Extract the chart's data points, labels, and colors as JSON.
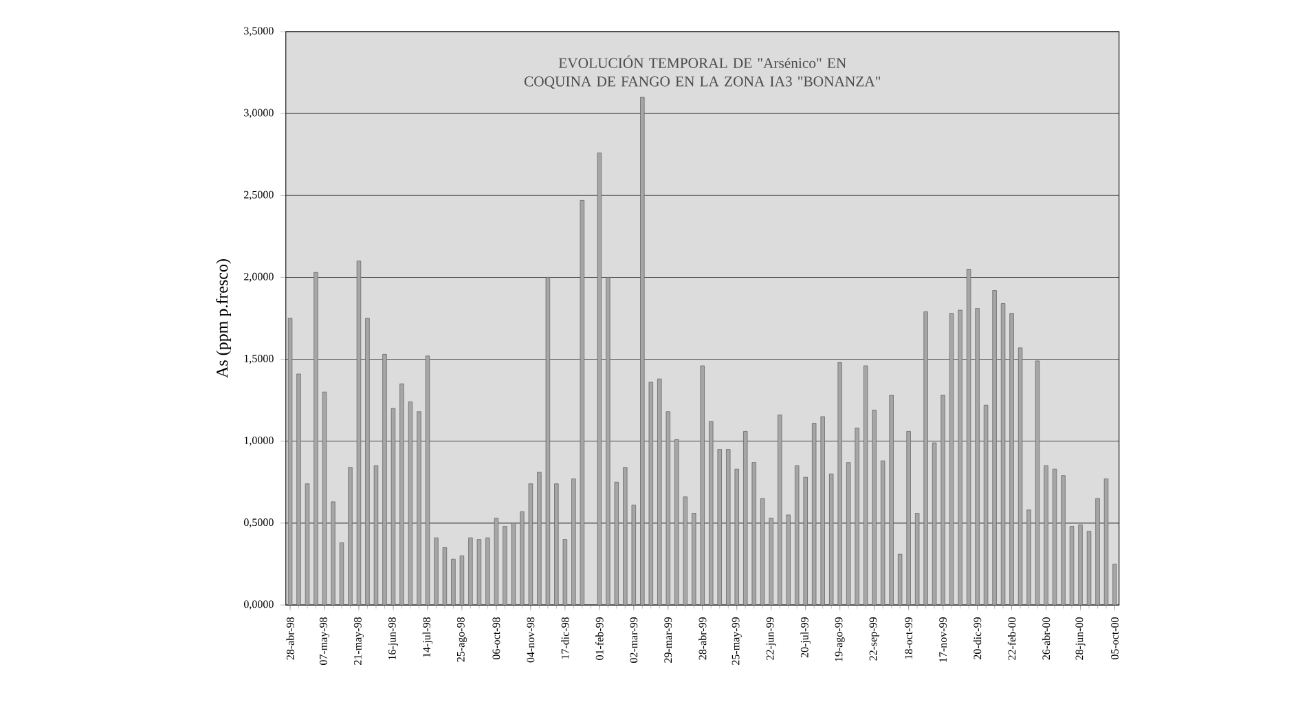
{
  "chart_data": {
    "type": "bar",
    "title": "EVOLUCIÓN TEMPORAL DE \"Arsénico\" EN COQUINA DE FANGO EN LA ZONA IA3 \"BONANZA\"",
    "ylabel": "As (ppm p.fresco)",
    "categories": [
      "28-abr-98",
      null,
      null,
      null,
      "07-may-98",
      null,
      null,
      null,
      "21-may-98",
      null,
      null,
      null,
      "16-jun-98",
      null,
      null,
      null,
      "14-jul-98",
      null,
      null,
      null,
      "25-ago-98",
      null,
      null,
      null,
      "06-oct-98",
      null,
      null,
      null,
      "04-nov-98",
      null,
      null,
      null,
      "17-dic-98",
      null,
      null,
      null,
      "01-feb-99",
      null,
      null,
      null,
      "02-mar-99",
      null,
      null,
      null,
      "29-mar-99",
      null,
      null,
      null,
      "28-abr-99",
      null,
      null,
      null,
      "25-may-99",
      null,
      null,
      null,
      "22-jun-99",
      null,
      null,
      null,
      "20-jul-99",
      null,
      null,
      null,
      "19-ago-99",
      null,
      null,
      null,
      "22-sep-99",
      null,
      null,
      null,
      "18-oct-99",
      null,
      null,
      null,
      "17-nov-99",
      null,
      null,
      null,
      "20-dic-99",
      null,
      null,
      null,
      "22-feb-00",
      null,
      null,
      null,
      "26-abr-00",
      null,
      null,
      null,
      "28-jun-00",
      null,
      null,
      null,
      "05-oct-00"
    ],
    "values": [
      1.75,
      1.41,
      0.74,
      2.03,
      1.3,
      0.63,
      0.38,
      0.84,
      2.1,
      1.75,
      0.85,
      1.53,
      1.2,
      1.35,
      1.24,
      1.18,
      1.52,
      0.41,
      0.35,
      0.28,
      0.3,
      0.41,
      0.4,
      0.41,
      0.53,
      0.48,
      0.5,
      0.57,
      0.74,
      0.81,
      2.0,
      0.74,
      0.4,
      0.77,
      2.47,
      null,
      2.76,
      2.0,
      0.75,
      0.84,
      0.61,
      3.1,
      1.36,
      1.38,
      1.18,
      1.01,
      0.66,
      0.56,
      1.46,
      1.12,
      0.95,
      0.95,
      0.83,
      1.06,
      0.87,
      0.65,
      0.53,
      1.16,
      0.55,
      0.85,
      0.78,
      1.11,
      1.15,
      0.8,
      1.48,
      0.87,
      1.08,
      1.46,
      1.19,
      0.88,
      1.28,
      0.31,
      1.06,
      0.56,
      1.79,
      0.99,
      1.28,
      1.78,
      1.8,
      2.05,
      1.81,
      1.22,
      1.92,
      1.84,
      1.78,
      1.57,
      0.58,
      1.49,
      0.85,
      0.83,
      0.79,
      0.48,
      0.49,
      0.45,
      0.65,
      0.77,
      0.25
    ],
    "color": "#a6a6a6",
    "ylim": [
      0,
      3.5
    ],
    "yticks": [
      {
        "value": 0,
        "label": "0,0000"
      },
      {
        "value": 0.5,
        "label": "0,5000"
      },
      {
        "value": 1,
        "label": "1,0000"
      },
      {
        "value": 1.5,
        "label": "1,5000"
      },
      {
        "value": 2,
        "label": "2,0000"
      },
      {
        "value": 2.5,
        "label": "2,5000"
      },
      {
        "value": 3,
        "label": "3,0000"
      },
      {
        "value": 3.5,
        "label": "3,5000"
      }
    ],
    "grid": "y"
  }
}
